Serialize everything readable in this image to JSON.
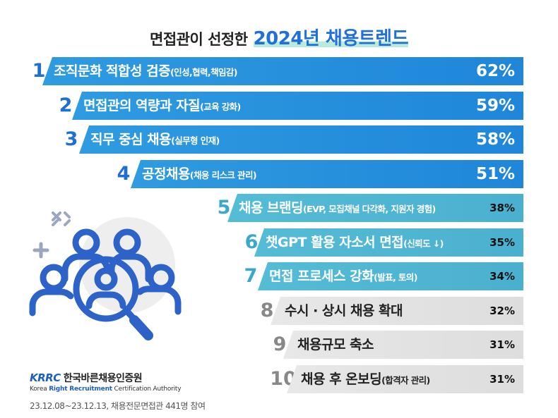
{
  "title": {
    "main": "면접관이 선정한",
    "accent": "2024년 채용트렌드"
  },
  "chart_data": {
    "type": "bar",
    "unit": "%",
    "title": "면접관이 선정한 2024년 채용트렌드",
    "items": [
      {
        "rank": "1",
        "label": "조직문화 적합성 검증",
        "sub": "(인성,협력,책임감)",
        "value": 62,
        "display": "62%"
      },
      {
        "rank": "2",
        "label": "면접관의 역량과 자질",
        "sub": "(교육 강화)",
        "value": 59,
        "display": "59%"
      },
      {
        "rank": "3",
        "label": "직무 중심 채용",
        "sub": "(실무형 인재)",
        "value": 58,
        "display": "58%"
      },
      {
        "rank": "4",
        "label": "공정채용",
        "sub": "(채용 리스크 관리)",
        "value": 51,
        "display": "51%"
      },
      {
        "rank": "5",
        "label": "채용 브랜딩",
        "sub": "(EVP, 모집채널 다각화, 지원자 경험)",
        "value": 38,
        "display": "38%"
      },
      {
        "rank": "6",
        "label": "챗GPT 활용 자소서 면접",
        "sub": "(신뢰도 ↓)",
        "value": 35,
        "display": "35%"
      },
      {
        "rank": "7",
        "label": "면접 프로세스 강화",
        "sub": "(발표, 토의)",
        "value": 34,
        "display": "34%"
      },
      {
        "rank": "8",
        "label": "수시 · 상시 채용 확대",
        "sub": "",
        "value": 32,
        "display": "32%"
      },
      {
        "rank": "9",
        "label": "채용규모 축소",
        "sub": "",
        "value": 31,
        "display": "31%"
      },
      {
        "rank": "10",
        "label": "채용 후 온보딩",
        "sub": "(합격자 관리)",
        "value": 31,
        "display": "31%"
      }
    ]
  },
  "colors": {
    "tier1": "#1f86d9",
    "tier2": "#4ab0cf",
    "tier3": "#dddddd",
    "tier1_rank": "#1f6fd0",
    "tier2_rank": "#3aa8c8",
    "tier3_rank": "#888888",
    "icon": "#2d63c8"
  },
  "illustration": {
    "icon": "people-search-icon"
  },
  "brand": {
    "logo": "KRRC",
    "name": "한국바른채용인증원",
    "english_pre": "Korea ",
    "english_hl1": "Right Recruitment",
    "english_mid": " Certification Authority"
  },
  "source": "23.12.08~23.12.13, 채용전문면접관 441명 참여"
}
